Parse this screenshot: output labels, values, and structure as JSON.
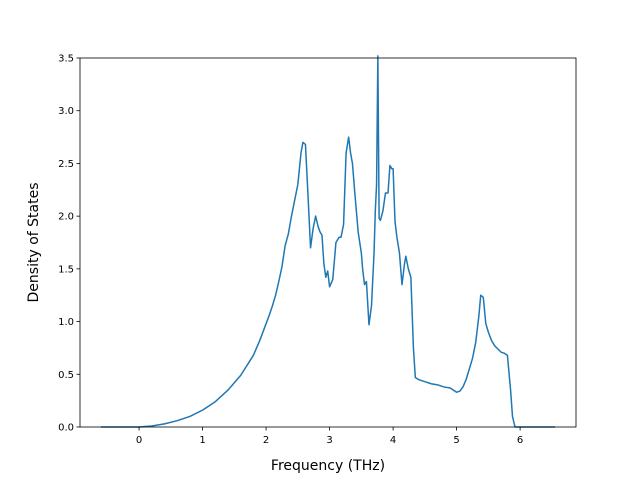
{
  "chart_data": {
    "type": "line",
    "title": "",
    "xlabel": "Frequency (THz)",
    "ylabel": "Density of States",
    "xlim": [
      -0.93,
      6.88
    ],
    "ylim": [
      0.0,
      3.5
    ],
    "grid": false,
    "legend": "none",
    "x_ticks": [
      {
        "value": 0,
        "label": "0"
      },
      {
        "value": 1,
        "label": "1"
      },
      {
        "value": 2,
        "label": "2"
      },
      {
        "value": 3,
        "label": "3"
      },
      {
        "value": 4,
        "label": "4"
      },
      {
        "value": 5,
        "label": "5"
      },
      {
        "value": 6,
        "label": "6"
      }
    ],
    "y_ticks": [
      {
        "value": 0.0,
        "label": "0.0"
      },
      {
        "value": 0.5,
        "label": "0.5"
      },
      {
        "value": 1.0,
        "label": "1.0"
      },
      {
        "value": 1.5,
        "label": "1.5"
      },
      {
        "value": 2.0,
        "label": "2.0"
      },
      {
        "value": 2.5,
        "label": "2.5"
      },
      {
        "value": 3.0,
        "label": "3.0"
      },
      {
        "value": 3.5,
        "label": "3.5"
      }
    ],
    "series": [
      {
        "color": "#1f77b4",
        "x": [
          -0.6,
          0.0,
          0.2,
          0.4,
          0.6,
          0.8,
          1.0,
          1.2,
          1.4,
          1.6,
          1.8,
          1.9,
          2.0,
          2.05,
          2.1,
          2.15,
          2.2,
          2.25,
          2.3,
          2.35,
          2.4,
          2.45,
          2.5,
          2.55,
          2.58,
          2.62,
          2.66,
          2.7,
          2.74,
          2.78,
          2.82,
          2.85,
          2.88,
          2.91,
          2.94,
          2.97,
          3.0,
          3.05,
          3.1,
          3.15,
          3.18,
          3.22,
          3.26,
          3.3,
          3.33,
          3.36,
          3.4,
          3.45,
          3.5,
          3.52,
          3.55,
          3.58,
          3.62,
          3.66,
          3.7,
          3.72,
          3.74,
          3.76,
          3.78,
          3.8,
          3.84,
          3.88,
          3.92,
          3.95,
          3.98,
          4.0,
          4.03,
          4.06,
          4.1,
          4.14,
          4.18,
          4.2,
          4.24,
          4.28,
          4.32,
          4.35,
          4.4,
          4.5,
          4.6,
          4.7,
          4.8,
          4.9,
          5.0,
          5.05,
          5.1,
          5.15,
          5.2,
          5.25,
          5.3,
          5.35,
          5.38,
          5.42,
          5.46,
          5.5,
          5.55,
          5.6,
          5.65,
          5.7,
          5.75,
          5.8,
          5.85,
          5.88,
          5.92,
          5.96,
          6.0,
          6.3,
          6.55
        ],
        "y": [
          0.0,
          0.0,
          0.01,
          0.03,
          0.06,
          0.1,
          0.16,
          0.24,
          0.35,
          0.49,
          0.68,
          0.82,
          0.98,
          1.06,
          1.15,
          1.25,
          1.38,
          1.52,
          1.72,
          1.83,
          2.0,
          2.15,
          2.3,
          2.6,
          2.7,
          2.68,
          2.2,
          1.7,
          1.88,
          2.0,
          1.9,
          1.85,
          1.82,
          1.55,
          1.42,
          1.48,
          1.33,
          1.4,
          1.75,
          1.8,
          1.8,
          1.92,
          2.6,
          2.75,
          2.6,
          2.5,
          2.2,
          1.85,
          1.65,
          1.5,
          1.35,
          1.38,
          0.97,
          1.15,
          1.65,
          2.05,
          2.3,
          3.52,
          1.98,
          1.96,
          2.05,
          2.22,
          2.22,
          2.48,
          2.45,
          2.45,
          1.95,
          1.8,
          1.65,
          1.35,
          1.55,
          1.62,
          1.5,
          1.42,
          0.75,
          0.47,
          0.45,
          0.43,
          0.41,
          0.4,
          0.38,
          0.37,
          0.33,
          0.34,
          0.38,
          0.45,
          0.55,
          0.65,
          0.8,
          1.05,
          1.25,
          1.23,
          0.98,
          0.9,
          0.82,
          0.77,
          0.74,
          0.71,
          0.7,
          0.68,
          0.35,
          0.1,
          0.0,
          0.0,
          0.0,
          0.0,
          0.0
        ]
      }
    ]
  }
}
